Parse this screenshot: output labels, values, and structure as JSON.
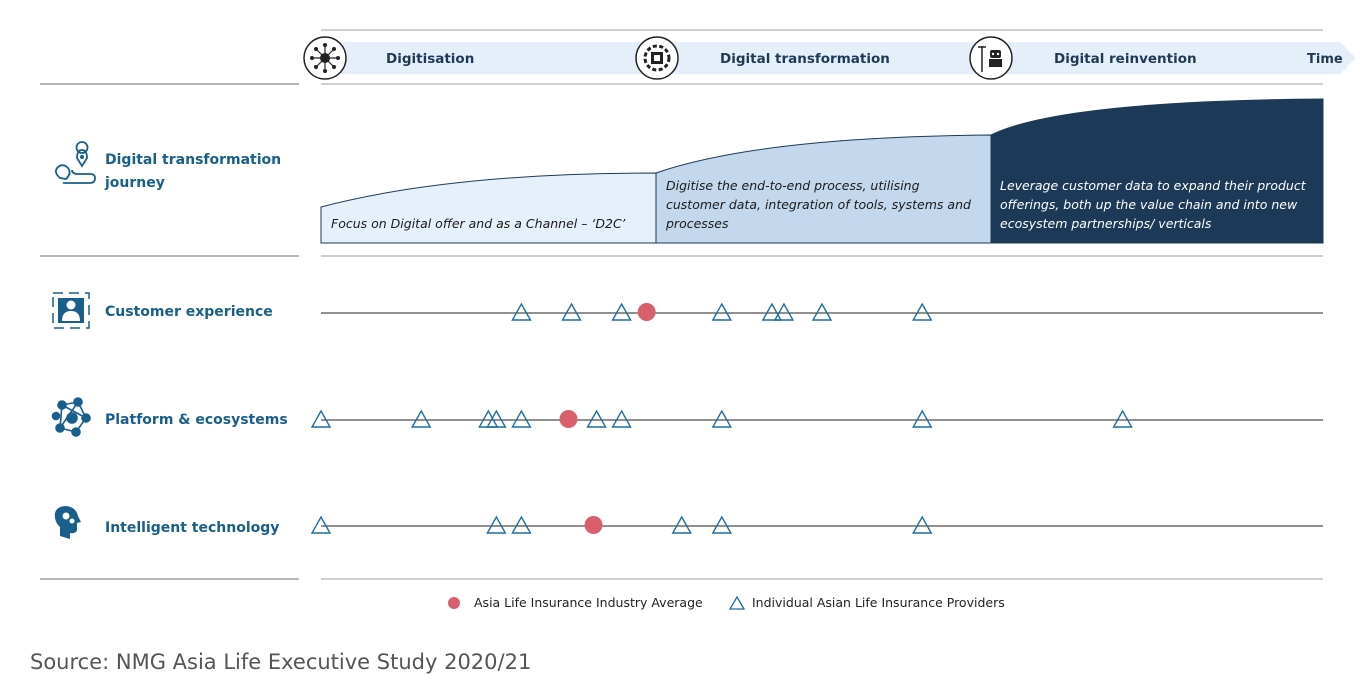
{
  "timeline": {
    "stages": [
      {
        "label": "Digitisation",
        "icon": "network-gear-icon"
      },
      {
        "label": "Digital transformation",
        "icon": "digital-gear-icon"
      },
      {
        "label": "Digital reinvention",
        "icon": "robot-icon"
      }
    ],
    "time_label": "Time"
  },
  "journey": {
    "label_line1": "Digital transformation",
    "label_line2": "journey",
    "icon": "route-pin-icon",
    "stages": [
      {
        "lines": [
          "Focus on Digital offer and as a Channel – ‘D2C’"
        ]
      },
      {
        "lines": [
          "Digitise the end-to-end process, utilising",
          "customer data, integration of tools, systems and",
          "processes"
        ]
      },
      {
        "lines": [
          "Leverage customer data to expand their product",
          "offerings, both up the value chain and into new",
          "ecosystem partnerships/ verticals"
        ]
      }
    ]
  },
  "chart_data": {
    "type": "scatter",
    "x_scale": "position along the Digitisation to Digital reinvention continuum (0 = start, 1 = end)",
    "rows": [
      {
        "label": "Customer experience",
        "icon": "customer-profile-icon",
        "average": 0.325,
        "providers": [
          0.2,
          0.25,
          0.3,
          0.4,
          0.45,
          0.462,
          0.5,
          0.6
        ]
      },
      {
        "label": "Platform & ecosystems",
        "icon": "ecosystem-network-icon",
        "average": 0.247,
        "providers": [
          0.0,
          0.1,
          0.167,
          0.175,
          0.2,
          0.275,
          0.3,
          0.4,
          0.6,
          0.8
        ]
      },
      {
        "label": "Intelligent technology",
        "icon": "brain-gears-icon",
        "average": 0.272,
        "providers": [
          0.0,
          0.175,
          0.2,
          0.36,
          0.4,
          0.6
        ]
      }
    ],
    "legend": [
      {
        "label": "Asia Life Insurance Industry Average",
        "marker": "circle"
      },
      {
        "label": "Individual Asian Life Insurance Providers",
        "marker": "triangle"
      }
    ]
  },
  "colors": {
    "average": "#d95f6e",
    "provider": "#1f6da0",
    "navy": "#1c3a57",
    "stage1_fill": "#e6f0fa",
    "stage2_fill": "#c3d8ec",
    "arrow_fill": "#e4eff9"
  },
  "source": "Source: NMG Asia Life Executive Study 2020/21"
}
